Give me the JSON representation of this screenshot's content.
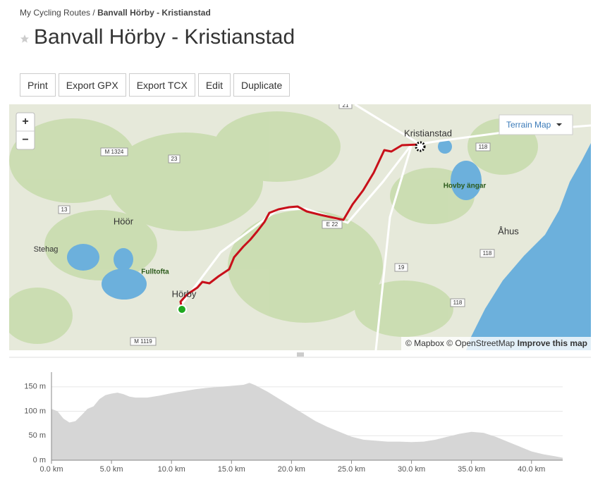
{
  "breadcrumb": {
    "parent": "My Cycling Routes",
    "separator": "/",
    "current": "Banvall Hörby - Kristianstad"
  },
  "header": {
    "title": "Banvall Hörby - Kristianstad"
  },
  "buttons": [
    "Print",
    "Export GPX",
    "Export TCX",
    "Edit",
    "Duplicate"
  ],
  "map": {
    "zoom_in": "+",
    "zoom_out": "−",
    "layer_select": "Terrain Map",
    "places": [
      "Kristianstad",
      "Höör",
      "Stehag",
      "Fulltofta",
      "Hörby",
      "Hovby ängar",
      "Åhus"
    ],
    "roads": [
      "21",
      "M 1324",
      "23",
      "13",
      "E 22",
      "118",
      "19",
      "118",
      "118",
      "M 1119"
    ],
    "attribution": "© Mapbox © OpenStreetMap",
    "improve": "Improve this map"
  },
  "chart_data": {
    "type": "area",
    "color": "#d6d6d6",
    "x": [
      0,
      0.5,
      1,
      1.5,
      2,
      2.5,
      3,
      3.5,
      4,
      4.5,
      5,
      5.5,
      6,
      6.5,
      7,
      8,
      9,
      10,
      11,
      12,
      13,
      14,
      15,
      16,
      16.5,
      17,
      18,
      19,
      20,
      21,
      22,
      23,
      24,
      25,
      26,
      27,
      28,
      29,
      30,
      31,
      32,
      33,
      34,
      35,
      36,
      37,
      38,
      39,
      40,
      41,
      42,
      42.6
    ],
    "values": [
      105,
      100,
      85,
      77,
      80,
      92,
      105,
      110,
      125,
      133,
      136,
      138,
      135,
      130,
      128,
      128,
      132,
      137,
      141,
      145,
      148,
      150,
      152,
      154,
      158,
      153,
      140,
      125,
      110,
      95,
      80,
      68,
      58,
      48,
      42,
      40,
      38,
      38,
      37,
      38,
      42,
      48,
      54,
      58,
      56,
      48,
      38,
      28,
      18,
      12,
      8,
      5
    ],
    "xlim": [
      0,
      42.6
    ],
    "ylim": [
      0,
      180
    ],
    "xticks": [
      {
        "value": 0,
        "label": "0.0 km"
      },
      {
        "value": 5,
        "label": "5.0 km"
      },
      {
        "value": 10,
        "label": "10.0 km"
      },
      {
        "value": 15,
        "label": "15.0 km"
      },
      {
        "value": 20,
        "label": "20.0 km"
      },
      {
        "value": 25,
        "label": "25.0 km"
      },
      {
        "value": 30,
        "label": "30.0 km"
      },
      {
        "value": 35,
        "label": "35.0 km"
      },
      {
        "value": 40,
        "label": "40.0 km"
      }
    ],
    "yticks": [
      {
        "value": 0,
        "label": "0 m"
      },
      {
        "value": 50,
        "label": "50 m"
      },
      {
        "value": 100,
        "label": "100 m"
      },
      {
        "value": 150,
        "label": "150 m"
      }
    ],
    "grid": true
  }
}
